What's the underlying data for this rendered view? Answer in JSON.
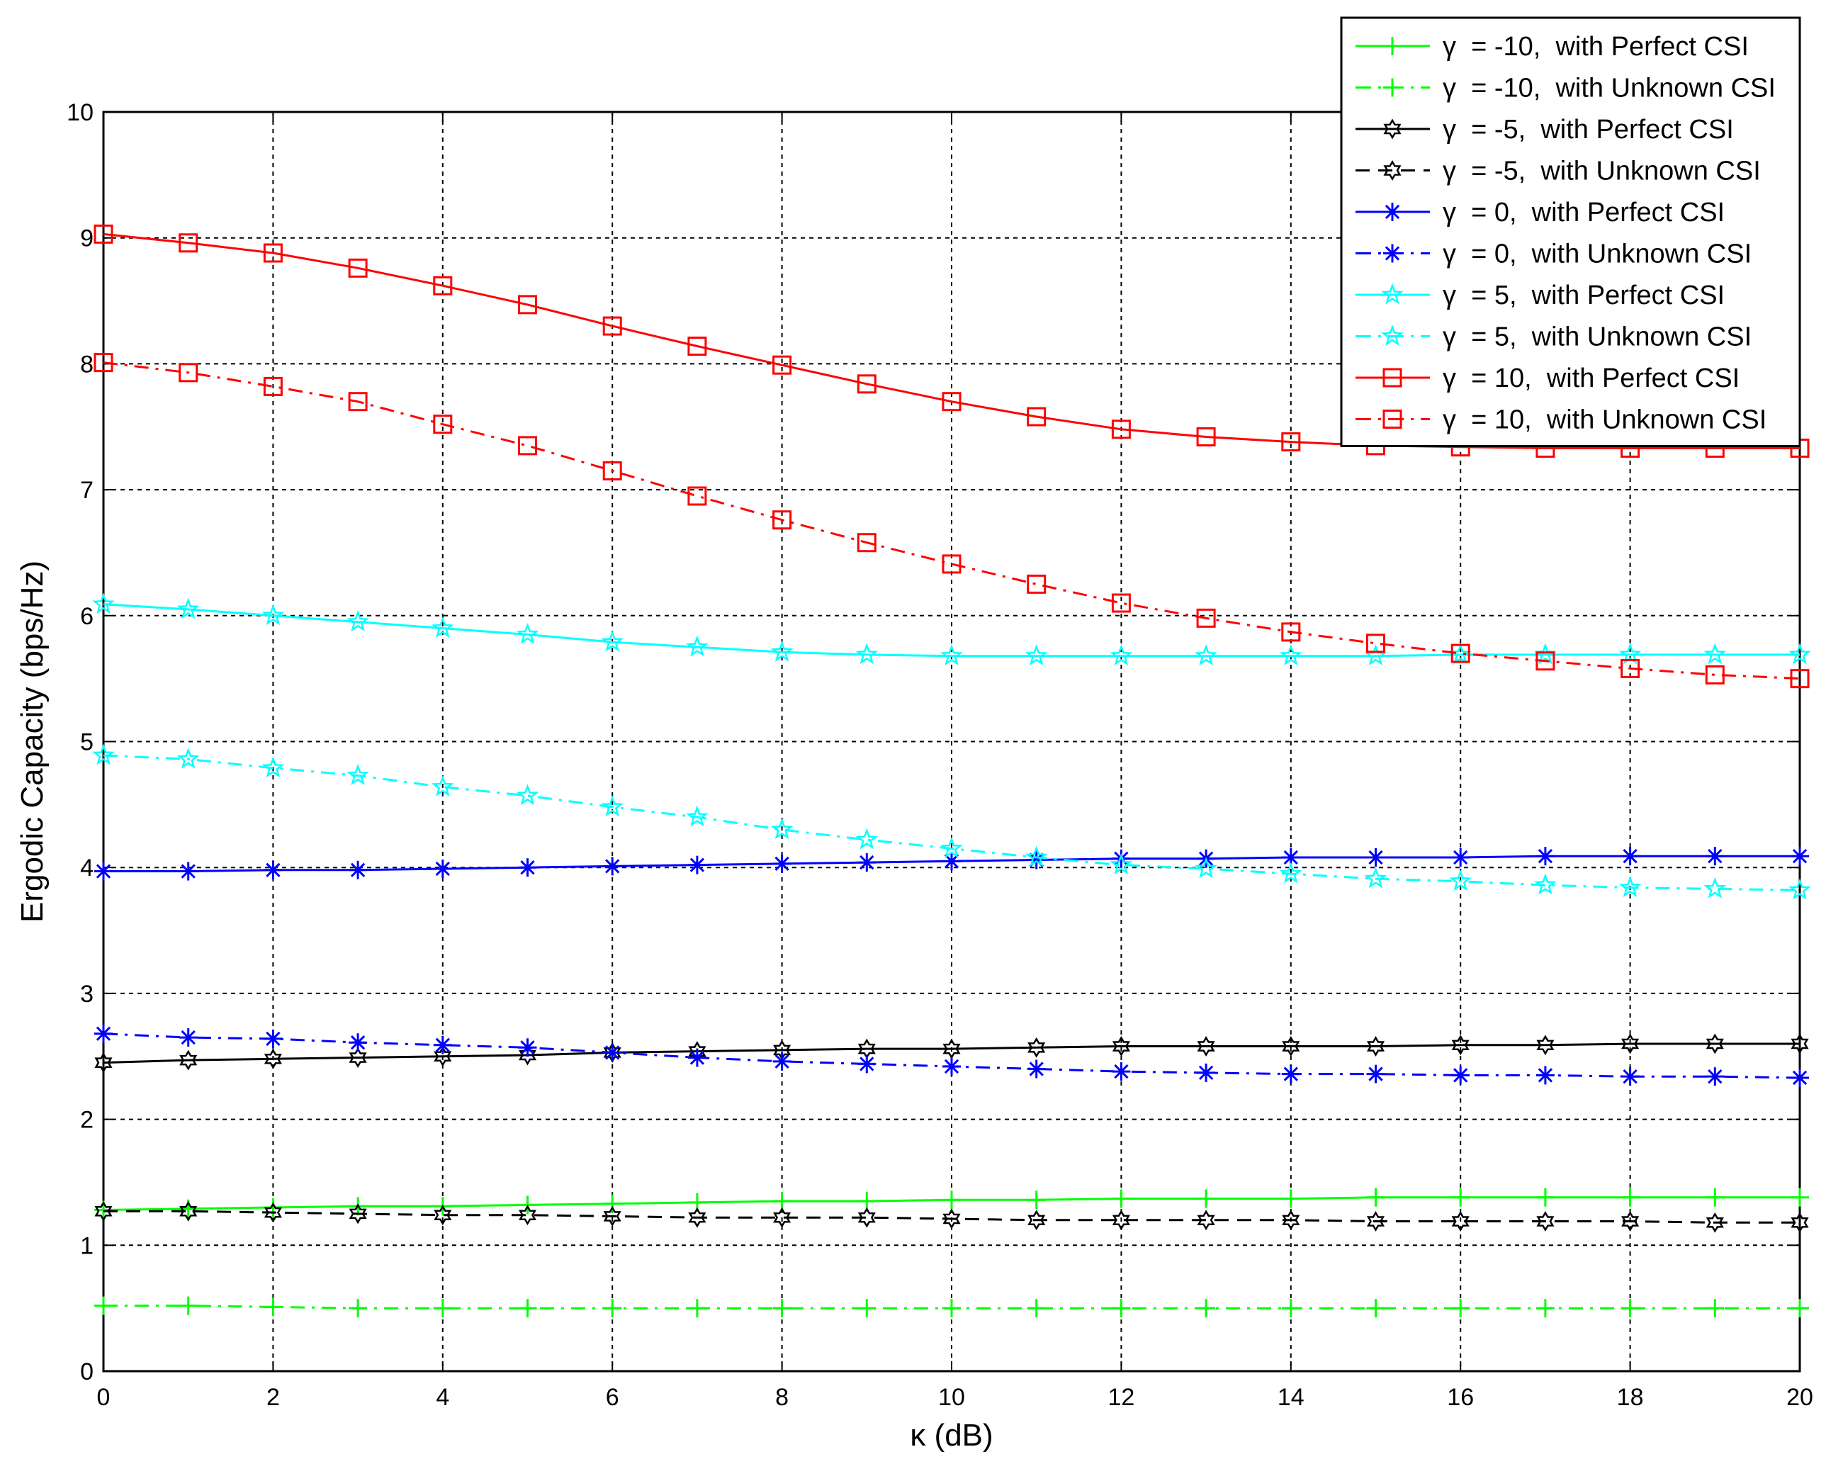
{
  "chart_data": {
    "type": "line",
    "title": "",
    "xlabel": "κ (dB)",
    "ylabel": "Ergodic Capacity (bps/Hz)",
    "xlim": [
      0,
      20
    ],
    "ylim": [
      0,
      10
    ],
    "xticks": [
      0,
      2,
      4,
      6,
      8,
      10,
      12,
      14,
      16,
      18,
      20
    ],
    "yticks": [
      0,
      1,
      2,
      3,
      4,
      5,
      6,
      7,
      8,
      9,
      10
    ],
    "grid": true,
    "legend_position": "top-right",
    "x": [
      0,
      1,
      2,
      3,
      4,
      5,
      6,
      7,
      8,
      9,
      10,
      11,
      12,
      13,
      14,
      15,
      16,
      17,
      18,
      19,
      20
    ],
    "series": [
      {
        "name": "γ  = -10,  with Perfect CSI",
        "color": "#00ff00",
        "dash": "solid",
        "marker": "plus",
        "values": [
          1.28,
          1.29,
          1.3,
          1.31,
          1.31,
          1.32,
          1.33,
          1.34,
          1.35,
          1.35,
          1.36,
          1.36,
          1.37,
          1.37,
          1.37,
          1.38,
          1.38,
          1.38,
          1.38,
          1.38,
          1.38
        ]
      },
      {
        "name": "γ  = -10,  with Unknown CSI",
        "color": "#00ff00",
        "dash": "dashdot",
        "marker": "plus",
        "values": [
          0.52,
          0.52,
          0.51,
          0.5,
          0.5,
          0.5,
          0.5,
          0.5,
          0.5,
          0.5,
          0.5,
          0.5,
          0.5,
          0.5,
          0.5,
          0.5,
          0.5,
          0.5,
          0.5,
          0.5,
          0.5
        ]
      },
      {
        "name": "γ  = -5,  with Perfect CSI",
        "color": "#000000",
        "dash": "solid",
        "marker": "hexagram",
        "values": [
          2.45,
          2.47,
          2.48,
          2.49,
          2.5,
          2.51,
          2.53,
          2.54,
          2.55,
          2.56,
          2.56,
          2.57,
          2.58,
          2.58,
          2.58,
          2.58,
          2.59,
          2.59,
          2.6,
          2.6,
          2.6
        ]
      },
      {
        "name": "γ  = -5,  with Unknown CSI",
        "color": "#000000",
        "dash": "dashed",
        "marker": "hexagram",
        "values": [
          1.27,
          1.27,
          1.26,
          1.25,
          1.24,
          1.24,
          1.23,
          1.22,
          1.22,
          1.22,
          1.21,
          1.2,
          1.2,
          1.2,
          1.2,
          1.19,
          1.19,
          1.19,
          1.19,
          1.18,
          1.18
        ]
      },
      {
        "name": "γ  = 0,  with Perfect CSI",
        "color": "#0000ff",
        "dash": "solid",
        "marker": "asterisk",
        "values": [
          3.97,
          3.97,
          3.98,
          3.98,
          3.99,
          4.0,
          4.01,
          4.02,
          4.03,
          4.04,
          4.05,
          4.06,
          4.07,
          4.07,
          4.08,
          4.08,
          4.08,
          4.09,
          4.09,
          4.09,
          4.09
        ]
      },
      {
        "name": "γ  = 0,  with Unknown CSI",
        "color": "#0000ff",
        "dash": "dashdot",
        "marker": "asterisk",
        "values": [
          2.68,
          2.65,
          2.64,
          2.61,
          2.59,
          2.57,
          2.53,
          2.49,
          2.46,
          2.44,
          2.42,
          2.4,
          2.38,
          2.37,
          2.36,
          2.36,
          2.35,
          2.35,
          2.34,
          2.34,
          2.33
        ]
      },
      {
        "name": "γ  = 5,  with Perfect CSI",
        "color": "#00ffff",
        "dash": "solid",
        "marker": "pentagram",
        "values": [
          6.09,
          6.05,
          6.0,
          5.95,
          5.9,
          5.85,
          5.79,
          5.75,
          5.71,
          5.69,
          5.68,
          5.68,
          5.68,
          5.68,
          5.68,
          5.68,
          5.69,
          5.69,
          5.69,
          5.69,
          5.69
        ]
      },
      {
        "name": "γ  = 5,  with Unknown CSI",
        "color": "#00ffff",
        "dash": "dashdot",
        "marker": "pentagram",
        "values": [
          4.89,
          4.86,
          4.79,
          4.73,
          4.64,
          4.57,
          4.48,
          4.4,
          4.3,
          4.22,
          4.15,
          4.08,
          4.02,
          3.99,
          3.95,
          3.91,
          3.89,
          3.86,
          3.84,
          3.83,
          3.82
        ]
      },
      {
        "name": "γ  = 10,  with Perfect CSI",
        "color": "#ff0000",
        "dash": "solid",
        "marker": "square",
        "values": [
          9.03,
          8.96,
          8.88,
          8.76,
          8.62,
          8.47,
          8.3,
          8.14,
          7.99,
          7.84,
          7.7,
          7.58,
          7.48,
          7.42,
          7.38,
          7.35,
          7.34,
          7.33,
          7.33,
          7.33,
          7.33
        ]
      },
      {
        "name": "γ  = 10,  with Unknown CSI",
        "color": "#ff0000",
        "dash": "dashdot",
        "marker": "square",
        "values": [
          8.01,
          7.93,
          7.82,
          7.7,
          7.52,
          7.35,
          7.15,
          6.95,
          6.76,
          6.58,
          6.41,
          6.25,
          6.1,
          5.98,
          5.87,
          5.78,
          5.7,
          5.64,
          5.58,
          5.53,
          5.5
        ]
      }
    ]
  }
}
